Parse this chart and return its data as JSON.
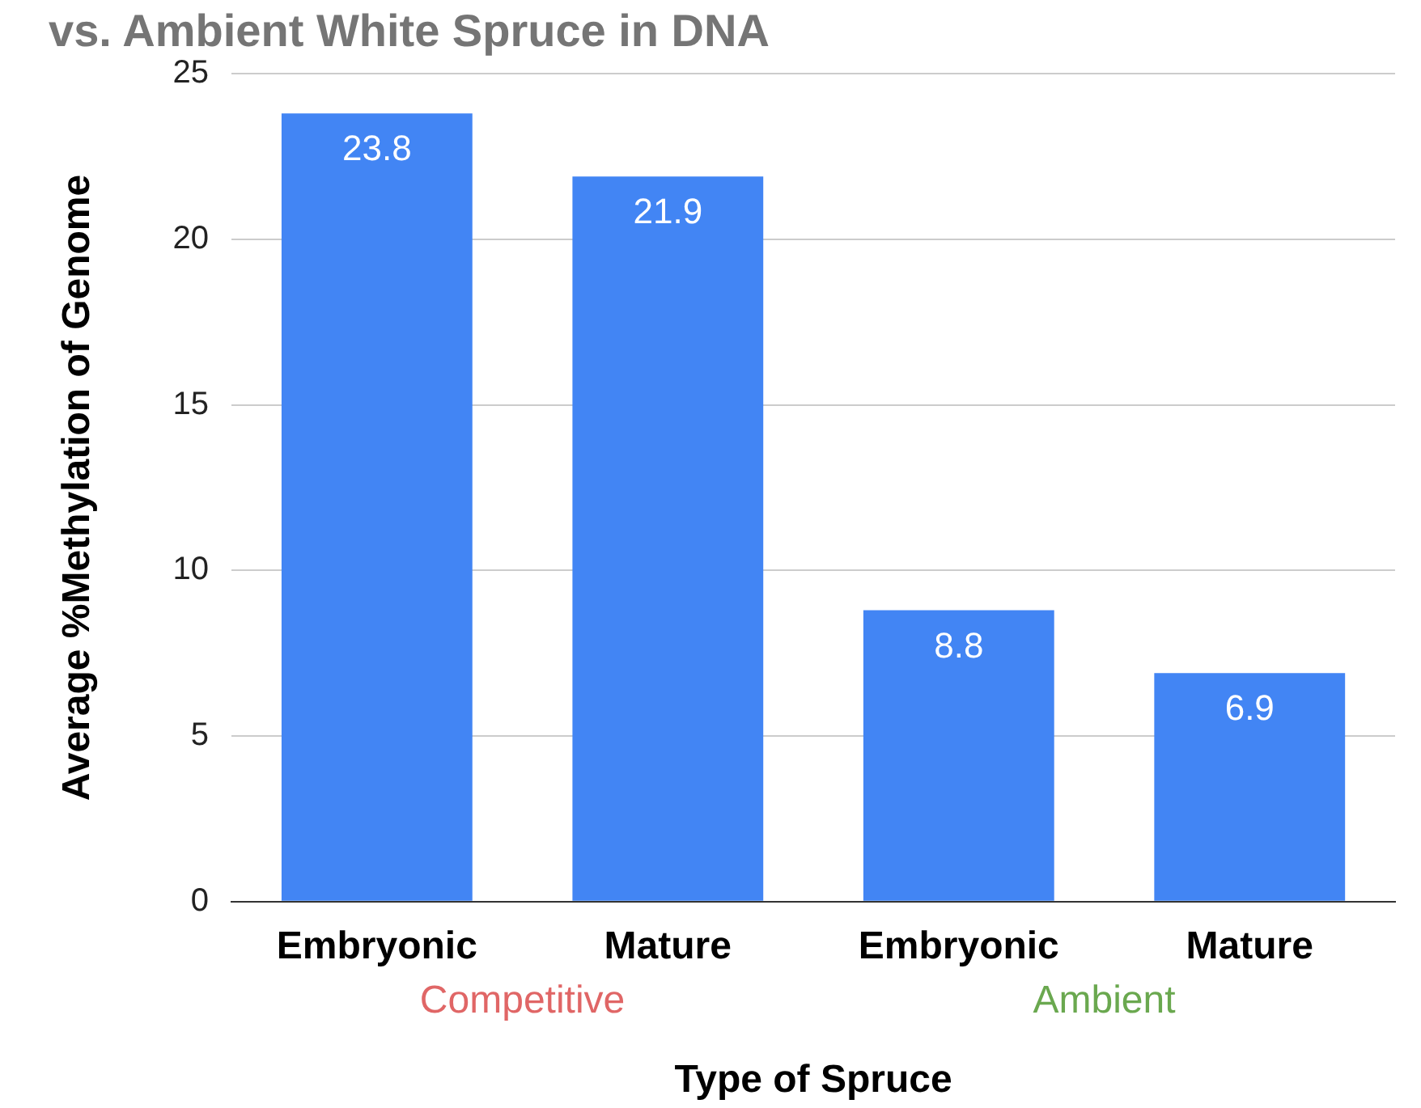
{
  "chart_data": {
    "type": "bar",
    "title": "vs. Ambient White Spruce in DNA",
    "xlabel": "Type of Spruce",
    "ylabel": "Average %Methylation of Genome",
    "categories": [
      "Embryonic",
      "Mature",
      "Embryonic",
      "Mature"
    ],
    "values": [
      23.8,
      21.9,
      8.8,
      6.9
    ],
    "color": "#4285f4",
    "ylim": [
      0,
      25
    ],
    "yticks": [
      0,
      5,
      10,
      15,
      20,
      25
    ],
    "grid": "y",
    "data_labels": true,
    "annotations": [
      "Competitive",
      "Ambient"
    ]
  }
}
